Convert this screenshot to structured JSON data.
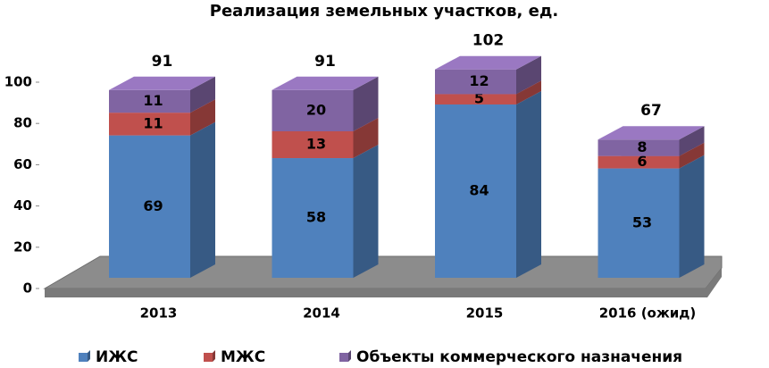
{
  "chart_data": {
    "type": "bar3d-stacked",
    "title": "Реализация земельных участков, ед.",
    "categories": [
      "2013",
      "2014",
      "2015",
      "2016 (ожид)"
    ],
    "series": [
      {
        "name": "ИЖС",
        "color": "#4f81bd",
        "label_color": "#000000",
        "values": [
          69,
          58,
          84,
          53
        ]
      },
      {
        "name": "МЖС",
        "color": "#c0504d",
        "label_color": "#000000",
        "values": [
          11,
          13,
          5,
          6
        ]
      },
      {
        "name": "Объекты коммерческого назначения",
        "color": "#8064a2",
        "label_color": "#ffffff",
        "values": [
          11,
          20,
          12,
          8
        ]
      }
    ],
    "totals": [
      91,
      91,
      102,
      67
    ],
    "ylim": [
      0,
      100
    ],
    "yticks": [
      0,
      20,
      40,
      60,
      80,
      100
    ]
  }
}
